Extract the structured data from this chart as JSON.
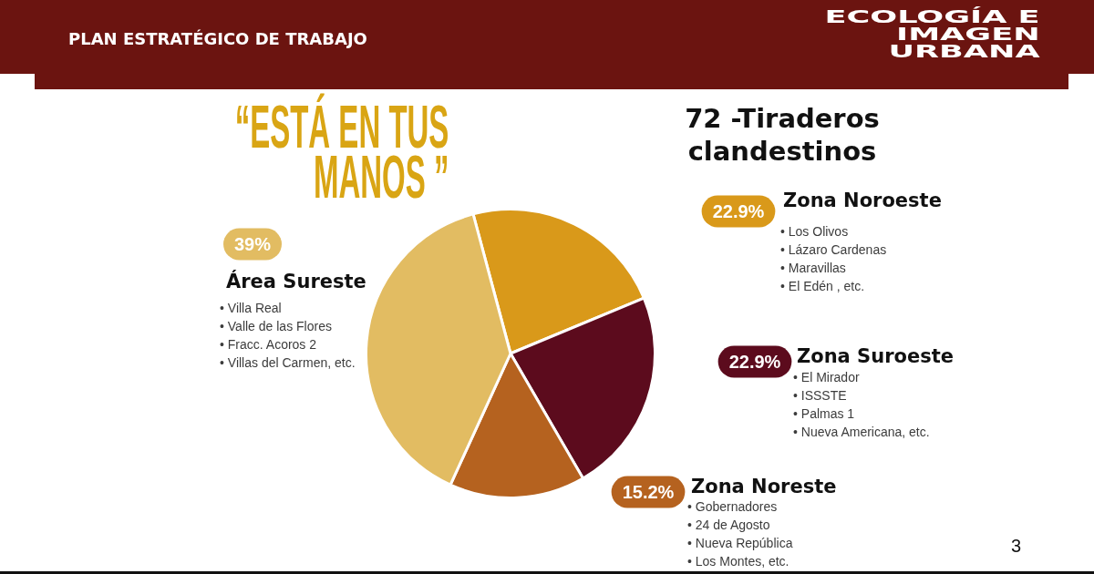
{
  "chart_data": {
    "type": "pie",
    "title": "72 -Tiraderos clandestinos",
    "categories": [
      "Zona Noroeste",
      "Zona Suroeste",
      "Zona Noreste",
      "Área Sureste"
    ],
    "values": [
      22.9,
      22.9,
      15.2,
      39
    ],
    "colors": [
      "#d9991a",
      "#5c0b1d",
      "#b5621f",
      "#e2bc62"
    ],
    "value_labels": [
      "22.9%",
      "22.9%",
      "15.2%",
      "39%"
    ],
    "legend": "right",
    "annotations": [
      "PLAN ESTRATÉGICO DE TRABAJO",
      "ECOLOGÍA E\nIMAGEN\nURBANA",
      "“ESTÁ EN TUS\nMANOS ”",
      "• Los Olivos\n• Lázaro Cardenas\n• Maravillas\n• El Edén , etc.",
      "• El Mirador\n• ISSSTE\n• Palmas 1\n• Nueva Americana, etc.",
      "• Gobernadores\n• 24 de Agosto\n• Nueva República\n• Los Montes, etc.",
      "• Villa Real\n• Valle de las Flores\n• Fracc. Acoros 2\n• Villas del Carmen, etc.",
      "3"
    ]
  }
}
